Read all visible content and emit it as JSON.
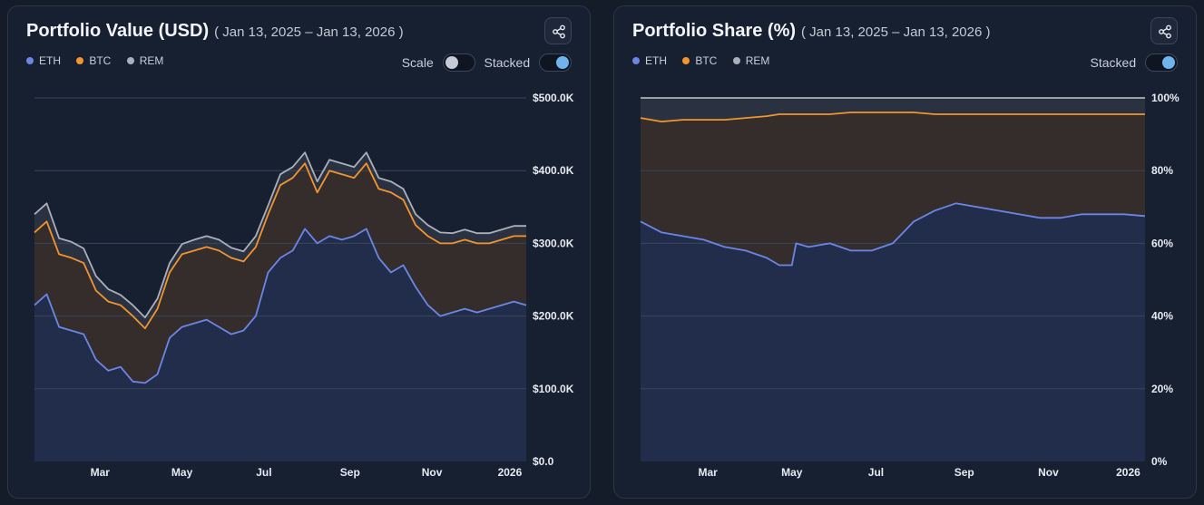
{
  "colors": {
    "eth": "#6c86e6",
    "btc": "#f2952f",
    "rem": "#aab0bb"
  },
  "chart_data": [
    {
      "type": "area",
      "title": "Portfolio Value (USD)",
      "subtitle": "( Jan 13, 2025 – Jan 13, 2026 )",
      "legend": [
        "ETH",
        "BTC",
        "REM"
      ],
      "legend_position": "top-left",
      "controls": {
        "scale_label": "Scale",
        "scale_on": false,
        "stacked_label": "Stacked",
        "stacked_on": true
      },
      "ylim": [
        0,
        500000
      ],
      "yticks": [
        0,
        100000,
        200000,
        300000,
        400000,
        500000
      ],
      "ytick_labels": [
        "$0.0",
        "$100.0K",
        "$200.0K",
        "$300.0K",
        "$400.0K",
        "$500.0K"
      ],
      "xticks": [
        {
          "t": 1.6,
          "label": "Mar"
        },
        {
          "t": 3.6,
          "label": "May"
        },
        {
          "t": 5.6,
          "label": "Jul"
        },
        {
          "t": 7.7,
          "label": "Sep"
        },
        {
          "t": 9.7,
          "label": "Nov"
        },
        {
          "t": 11.6,
          "label": "2026"
        }
      ],
      "x": [
        0,
        0.3,
        0.6,
        0.9,
        1.2,
        1.5,
        1.8,
        2.1,
        2.4,
        2.7,
        3.0,
        3.3,
        3.6,
        3.9,
        4.2,
        4.5,
        4.8,
        5.1,
        5.4,
        5.7,
        6.0,
        6.3,
        6.6,
        6.9,
        7.2,
        7.5,
        7.8,
        8.1,
        8.4,
        8.7,
        9.0,
        9.3,
        9.6,
        9.9,
        10.2,
        10.5,
        10.8,
        11.1,
        11.4,
        11.7,
        12.0
      ],
      "series": [
        {
          "name": "ETH",
          "values": [
            215000,
            230000,
            185000,
            180000,
            175000,
            140000,
            125000,
            130000,
            110000,
            108000,
            120000,
            170000,
            185000,
            190000,
            195000,
            185000,
            175000,
            180000,
            200000,
            260000,
            280000,
            290000,
            320000,
            300000,
            310000,
            305000,
            310000,
            320000,
            280000,
            260000,
            270000,
            240000,
            215000,
            200000,
            205000,
            210000,
            205000,
            210000,
            215000,
            220000,
            215000
          ]
        },
        {
          "name": "BTC",
          "values": [
            100000,
            100000,
            100000,
            100000,
            98000,
            95000,
            95000,
            85000,
            90000,
            75000,
            90000,
            90000,
            100000,
            100000,
            100000,
            105000,
            105000,
            95000,
            95000,
            80000,
            100000,
            100000,
            90000,
            70000,
            90000,
            90000,
            80000,
            90000,
            95000,
            110000,
            90000,
            85000,
            95000,
            100000,
            95000,
            95000,
            95000,
            90000,
            90000,
            90000,
            95000
          ]
        },
        {
          "name": "REM",
          "values": [
            25000,
            25000,
            22000,
            22000,
            20000,
            20000,
            17000,
            14000,
            15000,
            15000,
            14000,
            13000,
            14000,
            15000,
            15000,
            15000,
            14000,
            14000,
            15000,
            12000,
            15000,
            15000,
            15000,
            15000,
            15000,
            15000,
            15000,
            15000,
            15000,
            15000,
            15000,
            15000,
            15000,
            15000,
            14000,
            14000,
            14000,
            14000,
            14000,
            14000,
            14000
          ]
        }
      ]
    },
    {
      "type": "area",
      "title": "Portfolio Share (%)",
      "subtitle": "( Jan 13, 2025 – Jan 13, 2026 )",
      "legend": [
        "ETH",
        "BTC",
        "REM"
      ],
      "legend_position": "top-left",
      "controls": {
        "stacked_label": "Stacked",
        "stacked_on": true
      },
      "ylim": [
        0,
        100
      ],
      "yticks": [
        0,
        20,
        40,
        60,
        80,
        100
      ],
      "ytick_labels": [
        "0%",
        "20%",
        "40%",
        "60%",
        "80%",
        "100%"
      ],
      "xticks": [
        {
          "t": 1.6,
          "label": "Mar"
        },
        {
          "t": 3.6,
          "label": "May"
        },
        {
          "t": 5.6,
          "label": "Jul"
        },
        {
          "t": 7.7,
          "label": "Sep"
        },
        {
          "t": 9.7,
          "label": "Nov"
        },
        {
          "t": 11.6,
          "label": "2026"
        }
      ],
      "x": [
        0,
        0.5,
        1.0,
        1.5,
        2.0,
        2.5,
        3.0,
        3.3,
        3.6,
        3.7,
        4.0,
        4.5,
        5.0,
        5.5,
        6.0,
        6.5,
        7.0,
        7.5,
        8.0,
        8.5,
        9.0,
        9.5,
        10.0,
        10.5,
        11.0,
        11.5,
        12.0
      ],
      "series": [
        {
          "name": "ETH",
          "values": [
            66,
            63,
            62,
            61,
            59,
            58,
            56,
            54,
            54,
            60,
            59,
            60,
            58,
            58,
            60,
            66,
            69,
            71,
            70,
            69,
            68,
            67,
            67,
            68,
            68,
            68,
            67.5
          ]
        },
        {
          "name": "BTC",
          "values": [
            28.5,
            30.5,
            32,
            33,
            35,
            36.5,
            39,
            41.5,
            41.5,
            35.5,
            36.5,
            35.5,
            38,
            38,
            36,
            30,
            26.5,
            24.5,
            25.5,
            26.5,
            27.5,
            28.5,
            28.5,
            27.5,
            27.5,
            27.5,
            28
          ]
        },
        {
          "name": "REM",
          "values": [
            5.5,
            6.5,
            6,
            6,
            6,
            5.5,
            5,
            4.5,
            4.5,
            4.5,
            4.5,
            4.5,
            4,
            4,
            4,
            4,
            4.5,
            4.5,
            4.5,
            4.5,
            4.5,
            4.5,
            4.5,
            4.5,
            4.5,
            4.5,
            4.5
          ]
        }
      ]
    }
  ]
}
